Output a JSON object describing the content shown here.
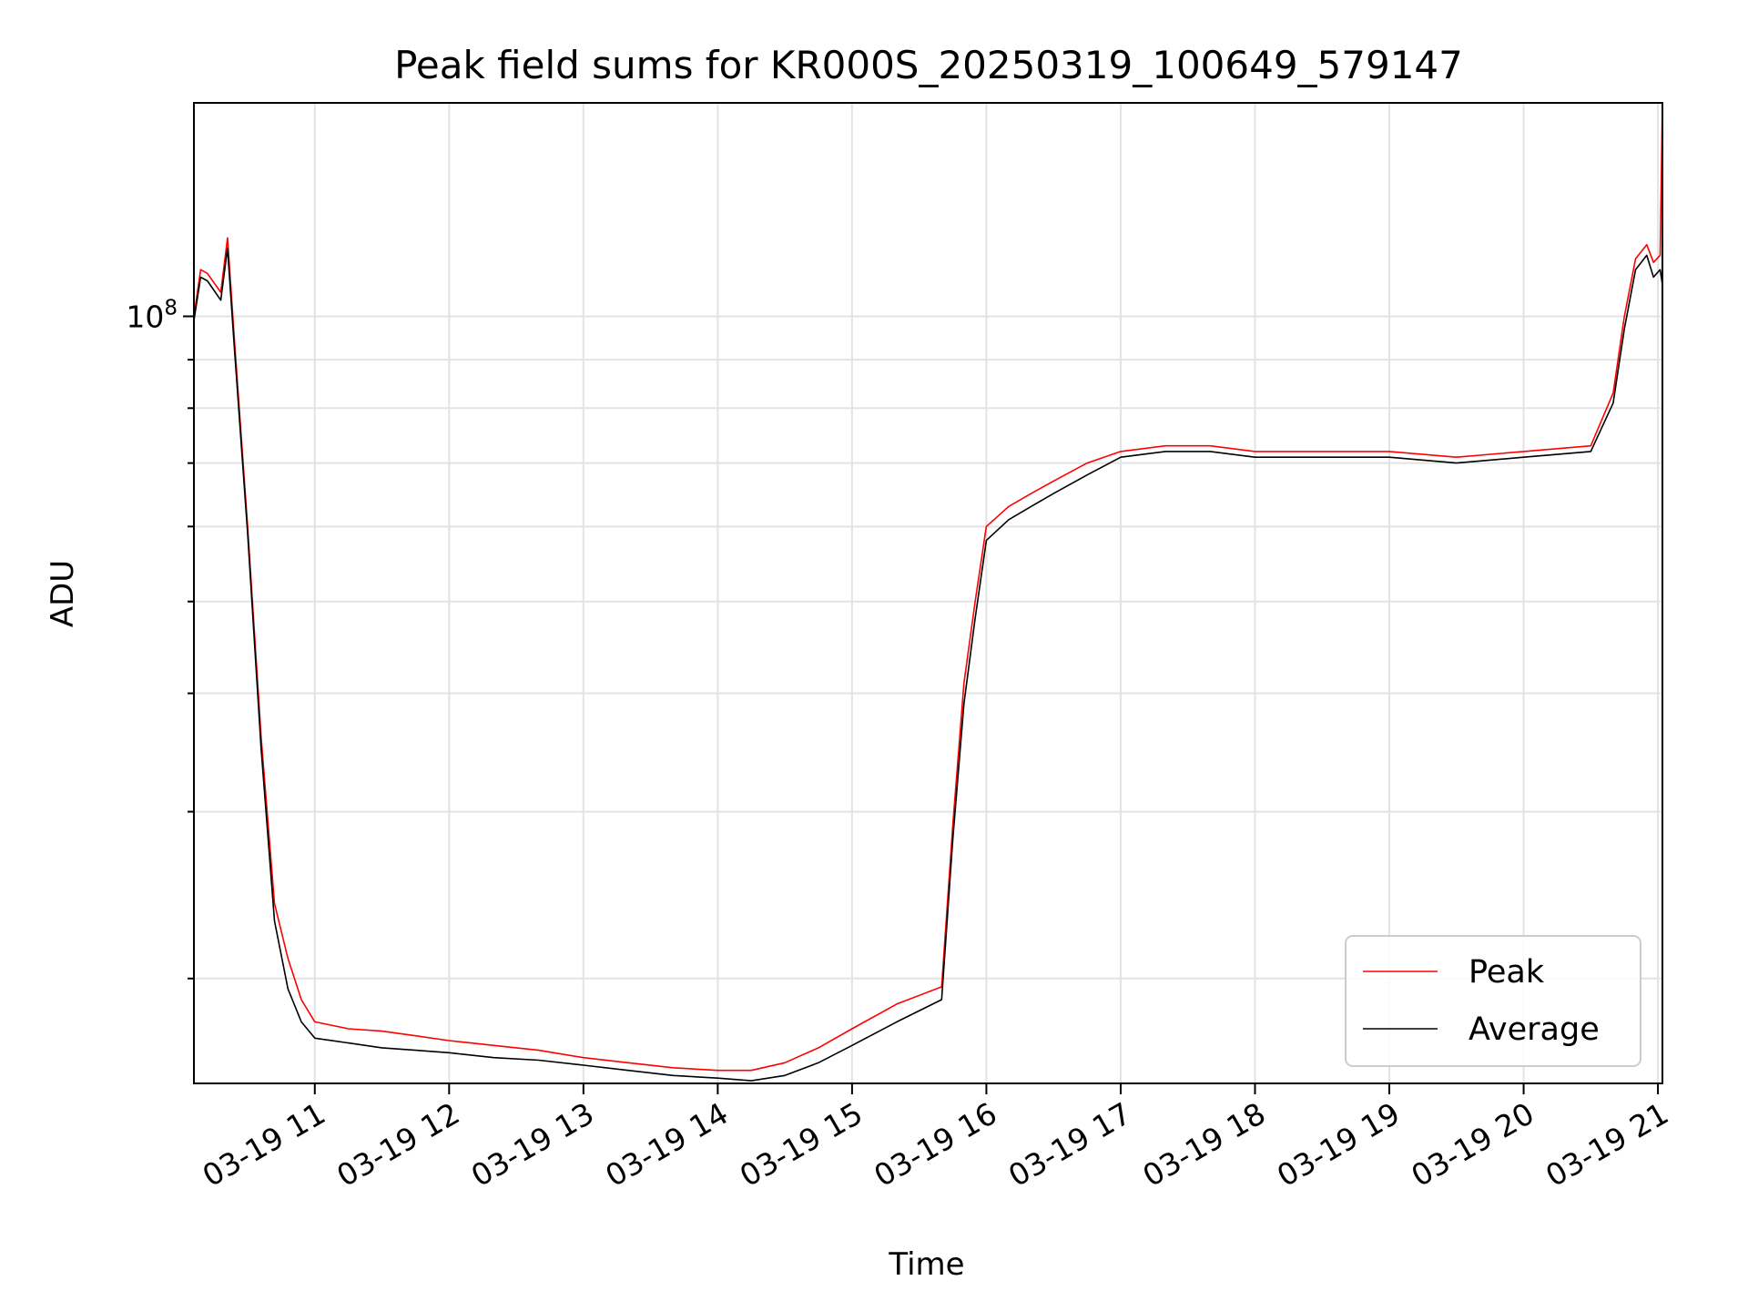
{
  "chart_data": {
    "type": "line",
    "title": "Peak field sums for KR000S_20250319_100649_579147",
    "xlabel": "Time",
    "ylabel": "ADU",
    "yscale": "log",
    "ylim": [
      15500000,
      168000000
    ],
    "xlim": [
      "2025-03-19 10:06",
      "2025-03-19 21:02"
    ],
    "x_ticks": [
      "03-19 11",
      "03-19 12",
      "03-19 13",
      "03-19 14",
      "03-19 15",
      "03-19 16",
      "03-19 17",
      "03-19 18",
      "03-19 19",
      "03-19 20",
      "03-19 21"
    ],
    "y_ticks": [
      {
        "label": "10",
        "exponent": "8",
        "value": 100000000
      }
    ],
    "grid": true,
    "legend": {
      "position": "lower right",
      "entries": [
        "Peak",
        "Average"
      ]
    },
    "colors": {
      "Peak": "#ff0000",
      "Average": "#000000"
    },
    "series": [
      {
        "name": "Peak",
        "x": [
          "2025-03-19 10:06",
          "2025-03-19 10:09",
          "2025-03-19 10:12",
          "2025-03-19 10:18",
          "2025-03-19 10:21",
          "2025-03-19 10:24",
          "2025-03-19 10:30",
          "2025-03-19 10:36",
          "2025-03-19 10:42",
          "2025-03-19 10:48",
          "2025-03-19 10:54",
          "2025-03-19 11:00",
          "2025-03-19 11:15",
          "2025-03-19 11:30",
          "2025-03-19 11:45",
          "2025-03-19 12:00",
          "2025-03-19 12:20",
          "2025-03-19 12:40",
          "2025-03-19 13:00",
          "2025-03-19 13:20",
          "2025-03-19 13:40",
          "2025-03-19 14:00",
          "2025-03-19 14:15",
          "2025-03-19 14:30",
          "2025-03-19 14:45",
          "2025-03-19 15:00",
          "2025-03-19 15:20",
          "2025-03-19 15:40",
          "2025-03-19 15:45",
          "2025-03-19 15:50",
          "2025-03-19 15:55",
          "2025-03-19 16:00",
          "2025-03-19 16:10",
          "2025-03-19 16:20",
          "2025-03-19 16:30",
          "2025-03-19 16:45",
          "2025-03-19 17:00",
          "2025-03-19 17:20",
          "2025-03-19 17:40",
          "2025-03-19 18:00",
          "2025-03-19 18:30",
          "2025-03-19 19:00",
          "2025-03-19 19:30",
          "2025-03-19 20:00",
          "2025-03-19 20:30",
          "2025-03-19 20:40",
          "2025-03-19 20:45",
          "2025-03-19 20:50",
          "2025-03-19 20:55",
          "2025-03-19 20:58",
          "2025-03-19 21:01",
          "2025-03-19 21:02"
        ],
        "y": [
          100000000,
          112000000,
          111000000,
          106000000,
          121000000,
          95000000,
          60000000,
          36000000,
          24000000,
          21000000,
          19000000,
          18000000,
          17700000,
          17600000,
          17400000,
          17200000,
          17000000,
          16800000,
          16500000,
          16300000,
          16100000,
          16000000,
          16000000,
          16300000,
          16900000,
          17700000,
          18800000,
          19600000,
          29000000,
          41000000,
          50000000,
          60000000,
          63000000,
          65000000,
          67000000,
          70000000,
          72000000,
          73000000,
          73000000,
          72000000,
          72000000,
          72000000,
          71000000,
          72000000,
          73000000,
          83000000,
          100000000,
          115000000,
          119000000,
          114000000,
          116000000,
          168000000
        ]
      },
      {
        "name": "Average",
        "x": [
          "2025-03-19 10:06",
          "2025-03-19 10:09",
          "2025-03-19 10:12",
          "2025-03-19 10:18",
          "2025-03-19 10:21",
          "2025-03-19 10:24",
          "2025-03-19 10:30",
          "2025-03-19 10:36",
          "2025-03-19 10:42",
          "2025-03-19 10:48",
          "2025-03-19 10:54",
          "2025-03-19 11:00",
          "2025-03-19 11:15",
          "2025-03-19 11:30",
          "2025-03-19 11:45",
          "2025-03-19 12:00",
          "2025-03-19 12:20",
          "2025-03-19 12:40",
          "2025-03-19 13:00",
          "2025-03-19 13:20",
          "2025-03-19 13:40",
          "2025-03-19 14:00",
          "2025-03-19 14:15",
          "2025-03-19 14:30",
          "2025-03-19 14:45",
          "2025-03-19 15:00",
          "2025-03-19 15:20",
          "2025-03-19 15:40",
          "2025-03-19 15:45",
          "2025-03-19 15:50",
          "2025-03-19 15:55",
          "2025-03-19 16:00",
          "2025-03-19 16:10",
          "2025-03-19 16:20",
          "2025-03-19 16:30",
          "2025-03-19 16:45",
          "2025-03-19 17:00",
          "2025-03-19 17:20",
          "2025-03-19 17:40",
          "2025-03-19 18:00",
          "2025-03-19 18:30",
          "2025-03-19 19:00",
          "2025-03-19 19:30",
          "2025-03-19 20:00",
          "2025-03-19 20:30",
          "2025-03-19 20:40",
          "2025-03-19 20:45",
          "2025-03-19 20:50",
          "2025-03-19 20:55",
          "2025-03-19 20:58",
          "2025-03-19 21:01",
          "2025-03-19 21:02"
        ],
        "y": [
          99000000,
          110000000,
          109000000,
          104000000,
          118000000,
          93000000,
          59000000,
          35000000,
          23000000,
          19500000,
          18000000,
          17300000,
          17100000,
          16900000,
          16800000,
          16700000,
          16500000,
          16400000,
          16200000,
          16000000,
          15800000,
          15700000,
          15600000,
          15800000,
          16300000,
          17000000,
          18000000,
          19000000,
          28000000,
          39000000,
          48000000,
          58000000,
          61000000,
          63000000,
          65000000,
          68000000,
          71000000,
          72000000,
          72000000,
          71000000,
          71000000,
          71000000,
          70000000,
          71000000,
          72000000,
          81000000,
          97000000,
          112000000,
          116000000,
          110000000,
          112000000,
          108000000
        ]
      }
    ]
  }
}
